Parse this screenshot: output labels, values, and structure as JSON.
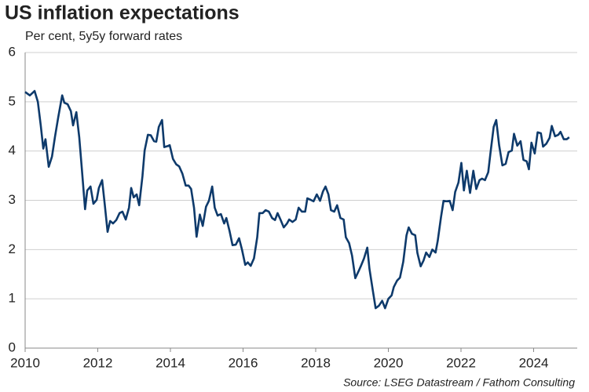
{
  "chart_data": {
    "type": "line",
    "title": "US inflation expectations",
    "subtitle": "Per cent, 5y5y forward rates",
    "source": "Source: LSEG Datastream / Fathom Consulting",
    "color": "#0e3a6b",
    "grid": true,
    "xlim": [
      2010,
      2025.2
    ],
    "xticks": [
      2010,
      2012,
      2014,
      2016,
      2018,
      2020,
      2022,
      2024
    ],
    "ylim": [
      0,
      6
    ],
    "yticks": [
      0,
      1,
      2,
      3,
      4,
      5,
      6
    ],
    "x": [
      2010.0,
      2010.13,
      2010.26,
      2010.35,
      2010.43,
      2010.5,
      2010.56,
      2010.65,
      2010.74,
      2010.82,
      2010.91,
      2011.02,
      2011.08,
      2011.17,
      2011.26,
      2011.32,
      2011.41,
      2011.49,
      2011.56,
      2011.65,
      2011.71,
      2011.8,
      2011.88,
      2011.97,
      2012.03,
      2012.12,
      2012.19,
      2012.27,
      2012.34,
      2012.42,
      2012.51,
      2012.6,
      2012.68,
      2012.77,
      2012.86,
      2012.92,
      2012.99,
      2013.07,
      2013.14,
      2013.23,
      2013.29,
      2013.38,
      2013.46,
      2013.55,
      2013.61,
      2013.68,
      2013.77,
      2013.83,
      2013.92,
      2013.98,
      2014.07,
      2014.16,
      2014.24,
      2014.33,
      2014.42,
      2014.5,
      2014.57,
      2014.65,
      2014.72,
      2014.81,
      2014.89,
      2014.98,
      2015.06,
      2015.15,
      2015.22,
      2015.3,
      2015.39,
      2015.48,
      2015.54,
      2015.63,
      2015.71,
      2015.8,
      2015.89,
      2015.97,
      2016.06,
      2016.13,
      2016.21,
      2016.3,
      2016.39,
      2016.45,
      2016.54,
      2016.62,
      2016.71,
      2016.8,
      2016.88,
      2016.95,
      2017.03,
      2017.12,
      2017.21,
      2017.27,
      2017.36,
      2017.45,
      2017.53,
      2017.62,
      2017.71,
      2017.77,
      2017.86,
      2017.94,
      2018.03,
      2018.12,
      2018.2,
      2018.27,
      2018.35,
      2018.42,
      2018.51,
      2018.59,
      2018.68,
      2018.77,
      2018.83,
      2018.92,
      2019.0,
      2019.09,
      2019.18,
      2019.24,
      2019.33,
      2019.42,
      2019.48,
      2019.57,
      2019.65,
      2019.74,
      2019.83,
      2019.91,
      2020.0,
      2020.09,
      2020.15,
      2020.24,
      2020.32,
      2020.41,
      2020.5,
      2020.56,
      2020.65,
      2020.74,
      2020.8,
      2020.89,
      2020.97,
      2021.04,
      2021.13,
      2021.21,
      2021.3,
      2021.36,
      2021.45,
      2021.52,
      2021.6,
      2021.69,
      2021.77,
      2021.84,
      2021.93,
      2022.01,
      2022.08,
      2022.16,
      2022.25,
      2022.34,
      2022.42,
      2022.51,
      2022.58,
      2022.66,
      2022.75,
      2022.81,
      2022.9,
      2022.97,
      2023.05,
      2023.14,
      2023.23,
      2023.31,
      2023.4,
      2023.46,
      2023.55,
      2023.64,
      2023.72,
      2023.81,
      2023.87,
      2023.94,
      2024.03,
      2024.11,
      2024.2,
      2024.26,
      2024.35,
      2024.44,
      2024.5,
      2024.59,
      2024.68,
      2024.74,
      2024.83,
      2024.91,
      2024.98
    ],
    "values": [
      5.2,
      5.13,
      5.22,
      5.0,
      4.52,
      4.05,
      4.24,
      3.68,
      3.89,
      4.28,
      4.68,
      5.13,
      4.98,
      4.95,
      4.81,
      4.52,
      4.79,
      4.28,
      3.65,
      2.82,
      3.2,
      3.28,
      2.93,
      3.01,
      3.25,
      3.41,
      2.93,
      2.36,
      2.58,
      2.53,
      2.6,
      2.74,
      2.77,
      2.61,
      2.85,
      3.25,
      3.06,
      3.12,
      2.9,
      3.49,
      4.01,
      4.33,
      4.32,
      4.2,
      4.19,
      4.49,
      4.63,
      4.08,
      4.1,
      4.12,
      3.84,
      3.73,
      3.69,
      3.54,
      3.3,
      3.3,
      3.23,
      2.85,
      2.26,
      2.71,
      2.48,
      2.87,
      2.99,
      3.28,
      2.85,
      2.69,
      2.72,
      2.53,
      2.64,
      2.37,
      2.09,
      2.1,
      2.23,
      2.0,
      1.69,
      1.74,
      1.67,
      1.82,
      2.25,
      2.74,
      2.74,
      2.8,
      2.77,
      2.64,
      2.6,
      2.74,
      2.61,
      2.45,
      2.53,
      2.61,
      2.56,
      2.61,
      2.85,
      2.77,
      2.77,
      3.04,
      3.01,
      2.98,
      3.12,
      2.99,
      3.18,
      3.28,
      3.12,
      2.8,
      2.77,
      2.9,
      2.64,
      2.61,
      2.25,
      2.13,
      1.88,
      1.42,
      1.56,
      1.66,
      1.82,
      2.04,
      1.61,
      1.18,
      0.81,
      0.86,
      0.96,
      0.81,
      1.0,
      1.07,
      1.24,
      1.37,
      1.43,
      1.75,
      2.29,
      2.45,
      2.32,
      2.29,
      1.93,
      1.66,
      1.78,
      1.94,
      1.85,
      2.0,
      1.94,
      2.18,
      2.66,
      2.99,
      2.98,
      2.99,
      2.8,
      3.17,
      3.36,
      3.76,
      3.2,
      3.6,
      3.15,
      3.6,
      3.23,
      3.41,
      3.44,
      3.41,
      3.57,
      3.95,
      4.49,
      4.63,
      4.12,
      3.71,
      3.74,
      3.98,
      4.01,
      4.35,
      4.11,
      4.2,
      3.82,
      3.79,
      3.63,
      4.17,
      3.95,
      4.38,
      4.36,
      4.09,
      4.15,
      4.27,
      4.51,
      4.3,
      4.33,
      4.39,
      4.24,
      4.24,
      4.28
    ]
  }
}
